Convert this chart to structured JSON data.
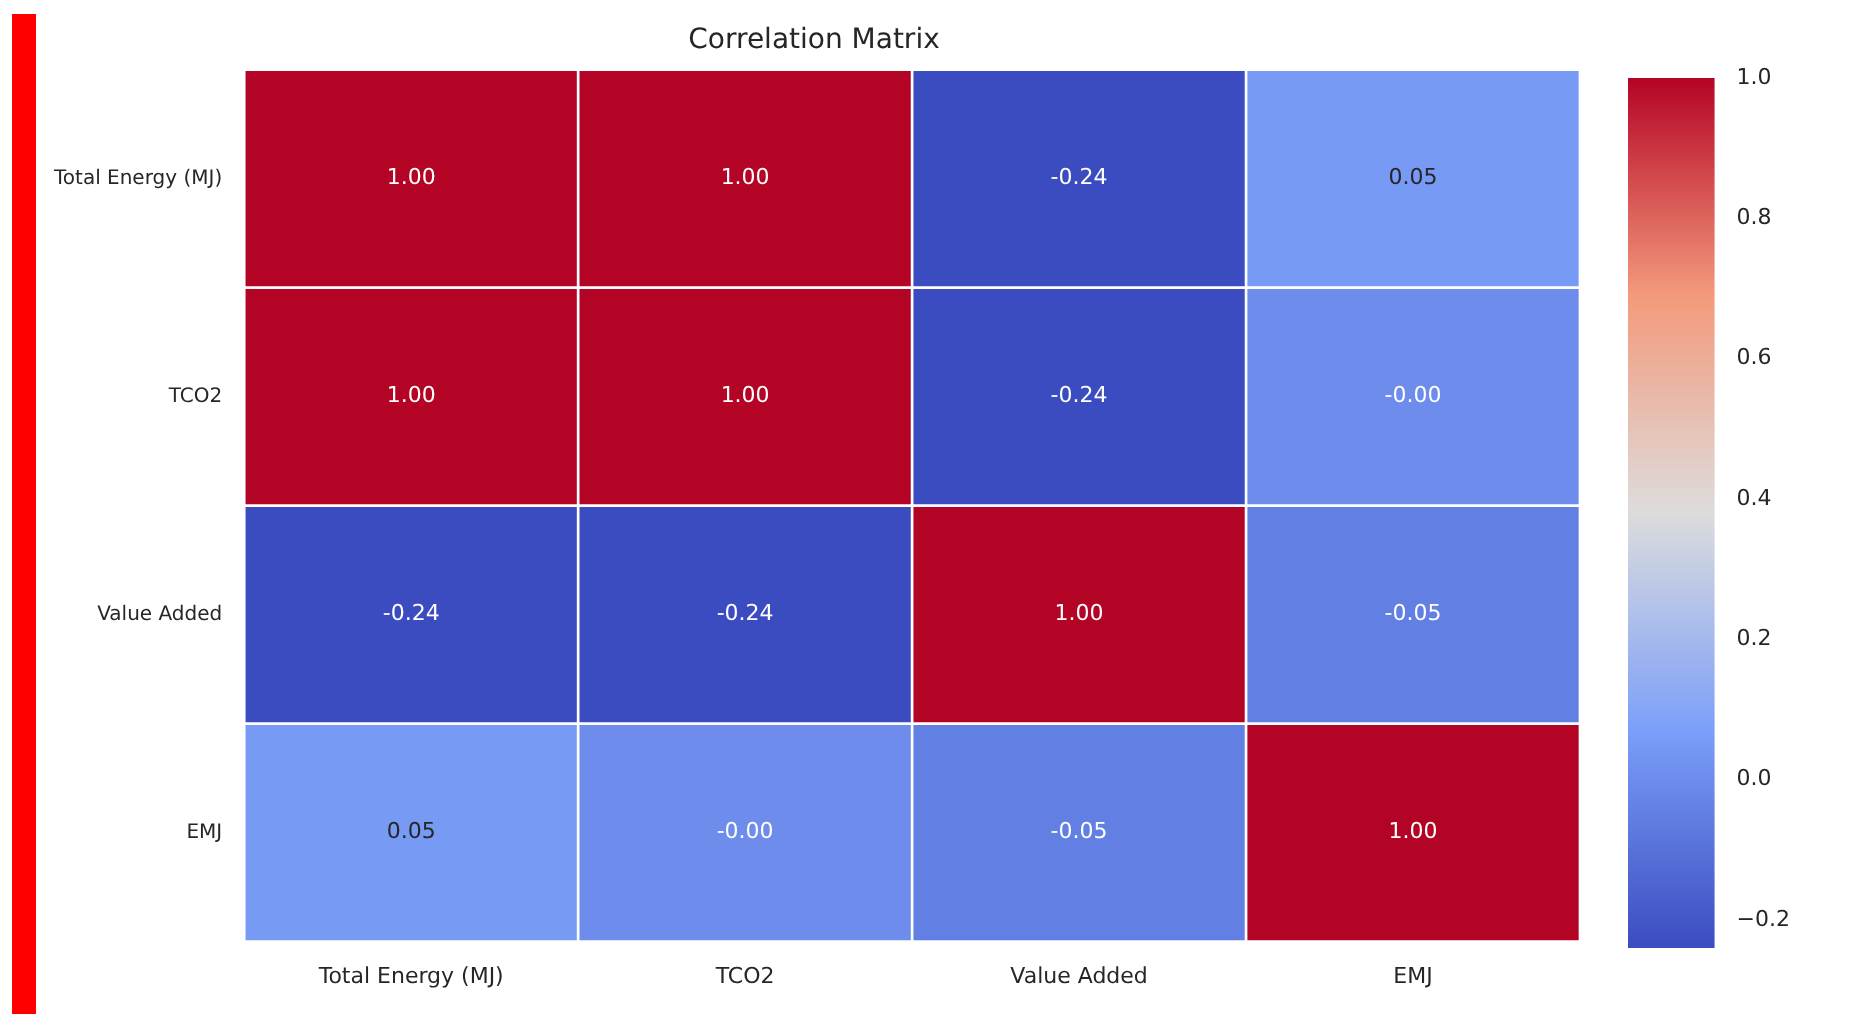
{
  "chart_data": {
    "type": "heatmap",
    "title": "Correlation Matrix",
    "categories": [
      "Total Energy (MJ)",
      "TCO2",
      "Value Added",
      "EMJ"
    ],
    "y_categories": [
      "Total Energy (MJ)",
      "TCO2",
      "Value Added",
      "EMJ"
    ],
    "cells": [
      [
        1.0,
        1.0,
        -0.24,
        0.05
      ],
      [
        1.0,
        1.0,
        -0.24,
        -0.0
      ],
      [
        -0.24,
        -0.24,
        1.0,
        -0.05
      ],
      [
        0.05,
        -0.0,
        -0.05,
        1.0
      ]
    ],
    "cell_labels": [
      [
        "1.00",
        "1.00",
        "-0.24",
        "0.05"
      ],
      [
        "1.00",
        "1.00",
        "-0.24",
        "-0.00"
      ],
      [
        "-0.24",
        "-0.24",
        "1.00",
        "-0.05"
      ],
      [
        "0.05",
        "-0.00",
        "-0.05",
        "1.00"
      ]
    ],
    "clim": [
      -0.24,
      1.0
    ],
    "cticks": [
      {
        "value": -0.2,
        "label": "−0.2"
      },
      {
        "value": 0.0,
        "label": "0.0"
      },
      {
        "value": 0.2,
        "label": "0.2"
      },
      {
        "value": 0.4,
        "label": "0.4"
      },
      {
        "value": 0.6,
        "label": "0.6"
      },
      {
        "value": 0.8,
        "label": "0.8"
      },
      {
        "value": 1.0,
        "label": "1.0"
      }
    ]
  }
}
